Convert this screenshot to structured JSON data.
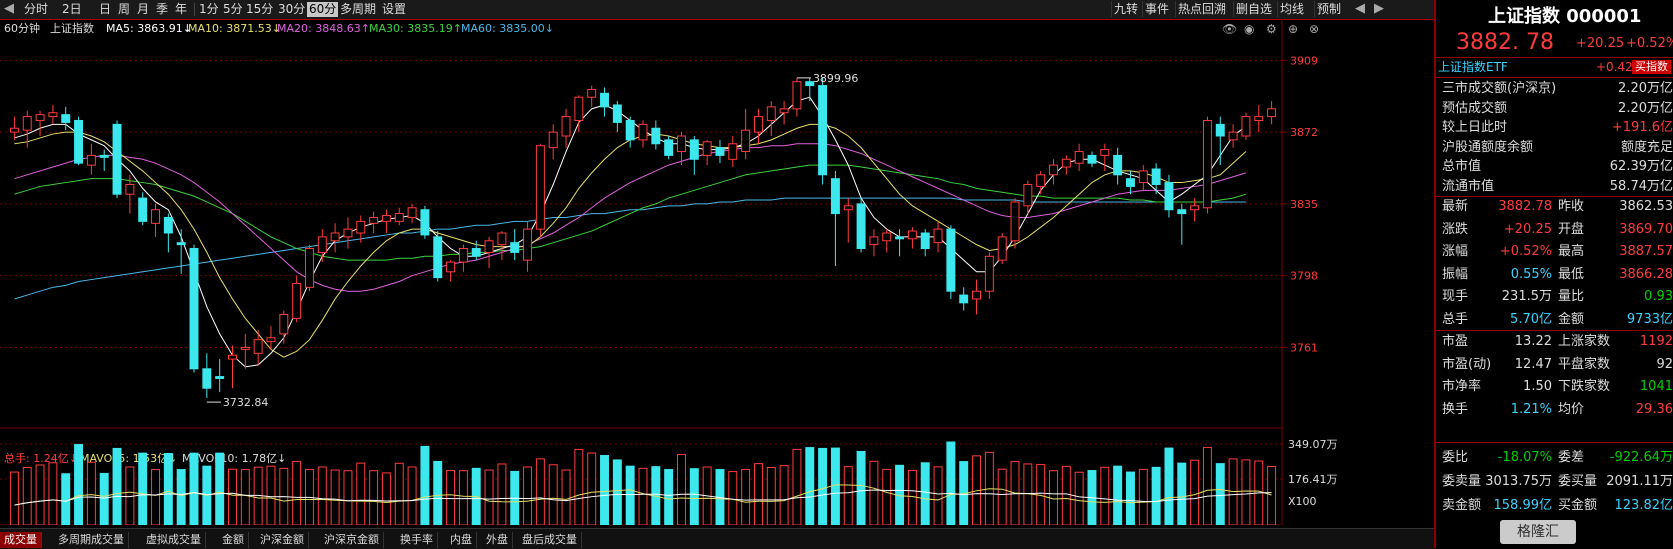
{
  "toolbar": {
    "periods": [
      "分时",
      "2日",
      "日",
      "周",
      "月",
      "季",
      "年",
      "1分",
      "5分",
      "15分",
      "30分",
      "60分",
      "多周期",
      "设置"
    ],
    "active_period": "60分",
    "right_buttons": [
      "九转",
      "事件",
      "热点回溯",
      "删自选",
      "均线",
      "预制"
    ]
  },
  "indicator": {
    "period_label": "60分钟",
    "name": "上证指数",
    "ma5": "MA5: 3863.91↓",
    "ma10": "MA10: 3871.53↓",
    "ma20": "MA20: 3848.63↑",
    "ma30": "MA30: 3835.19↑",
    "ma60": "MA60: 3835.00↓"
  },
  "volume_indicator": {
    "total": "总手: 1.24亿↓",
    "mavol5": "MAVOL5: 1.53亿↓",
    "mavol10": "MAVOL10: 1.78亿↓"
  },
  "colors": {
    "up": "#ff3c3c",
    "down": "#3ce8ee",
    "ma5": "#ffffff",
    "ma10": "#e8e06a",
    "ma20": "#e060e0",
    "ma30": "#3cd23c",
    "ma60": "#4ab8e8",
    "grid": "#7a0000"
  },
  "chart_data": {
    "type": "candlestick",
    "price_axis_ticks": [
      "3909",
      "3872",
      "3835",
      "3798",
      "3761"
    ],
    "volume_axis_ticks": [
      "349.07万",
      "176.41万",
      "X100"
    ],
    "ylim": [
      3720,
      3920
    ],
    "annotations": [
      {
        "label": "3899.96",
        "value": 3899.96
      },
      {
        "label": "3732.84",
        "value": 3732.84
      }
    ],
    "candles": [
      [
        3872,
        3874,
        3868,
        3880,
        118
      ],
      [
        3873,
        3880,
        3864,
        3883,
        145
      ],
      [
        3878,
        3881,
        3870,
        3883,
        160
      ],
      [
        3880,
        3882,
        3876,
        3886,
        173
      ],
      [
        3881,
        3877,
        3873,
        3885,
        108
      ],
      [
        3878,
        3856,
        3855,
        3880,
        281
      ],
      [
        3855,
        3860,
        3850,
        3866,
        176
      ],
      [
        3860,
        3859,
        3852,
        3863,
        110
      ],
      [
        3876,
        3840,
        3838,
        3878,
        258
      ],
      [
        3840,
        3845,
        3830,
        3850,
        148
      ],
      [
        3838,
        3826,
        3824,
        3841,
        230
      ],
      [
        3825,
        3832,
        3818,
        3835,
        133
      ],
      [
        3828,
        3820,
        3810,
        3830,
        228
      ],
      [
        3815,
        3814,
        3799,
        3822,
        133
      ],
      [
        3812,
        3750,
        3748,
        3814,
        230
      ],
      [
        3750,
        3740,
        3735,
        3758,
        153
      ],
      [
        3746,
        3745,
        3738,
        3755,
        230
      ],
      [
        3755,
        3757,
        3740,
        3762,
        135
      ],
      [
        3760,
        3761,
        3750,
        3768,
        133
      ],
      [
        3758,
        3765,
        3752,
        3770,
        147
      ],
      [
        3764,
        3766,
        3760,
        3772,
        153
      ],
      [
        3768,
        3778,
        3763,
        3780,
        140
      ],
      [
        3776,
        3794,
        3774,
        3798,
        181
      ],
      [
        3792,
        3812,
        3790,
        3814,
        133
      ],
      [
        3810,
        3818,
        3805,
        3822,
        148
      ],
      [
        3816,
        3820,
        3810,
        3825,
        130
      ],
      [
        3818,
        3822,
        3812,
        3828,
        126
      ],
      [
        3820,
        3826,
        3815,
        3829,
        171
      ],
      [
        3825,
        3828,
        3820,
        3831,
        126
      ],
      [
        3826,
        3829,
        3820,
        3832,
        113
      ],
      [
        3826,
        3830,
        3824,
        3833,
        170
      ],
      [
        3828,
        3833,
        3825,
        3835,
        148
      ],
      [
        3832,
        3819,
        3817,
        3834,
        270
      ],
      [
        3818,
        3797,
        3795,
        3821,
        181
      ],
      [
        3800,
        3805,
        3795,
        3806,
        127
      ],
      [
        3805,
        3812,
        3800,
        3814,
        126
      ],
      [
        3812,
        3808,
        3806,
        3816,
        140
      ],
      [
        3810,
        3816,
        3802,
        3818,
        130
      ],
      [
        3814,
        3820,
        3806,
        3821,
        166
      ],
      [
        3815,
        3810,
        3806,
        3822,
        122
      ],
      [
        3806,
        3822,
        3800,
        3826,
        148
      ],
      [
        3822,
        3865,
        3818,
        3866,
        196
      ],
      [
        3864,
        3872,
        3858,
        3876,
        161
      ],
      [
        3870,
        3880,
        3864,
        3884,
        130
      ],
      [
        3878,
        3890,
        3872,
        3891,
        252
      ],
      [
        3890,
        3894,
        3885,
        3896,
        231
      ],
      [
        3892,
        3885,
        3880,
        3895,
        216
      ],
      [
        3886,
        3877,
        3872,
        3888,
        190
      ],
      [
        3878,
        3868,
        3864,
        3880,
        153
      ],
      [
        3868,
        3876,
        3864,
        3878,
        140
      ],
      [
        3874,
        3866,
        3863,
        3878,
        150
      ],
      [
        3868,
        3860,
        3858,
        3870,
        133
      ],
      [
        3862,
        3870,
        3855,
        3872,
        222
      ],
      [
        3868,
        3858,
        3850,
        3870,
        138
      ],
      [
        3860,
        3867,
        3855,
        3868,
        148
      ],
      [
        3864,
        3860,
        3856,
        3868,
        133
      ],
      [
        3858,
        3866,
        3854,
        3870,
        121
      ],
      [
        3862,
        3873,
        3858,
        3884,
        133
      ],
      [
        3872,
        3880,
        3866,
        3884,
        168
      ],
      [
        3878,
        3885,
        3870,
        3888,
        145
      ],
      [
        3882,
        3884,
        3876,
        3888,
        156
      ],
      [
        3884,
        3898,
        3880,
        3900,
        252
      ],
      [
        3898,
        3896,
        3888,
        3900,
        263
      ],
      [
        3896,
        3850,
        3845,
        3900,
        258
      ],
      [
        3848,
        3830,
        3803,
        3852,
        260
      ],
      [
        3832,
        3834,
        3815,
        3838,
        150
      ],
      [
        3835,
        3812,
        3810,
        3838,
        240
      ],
      [
        3814,
        3818,
        3808,
        3822,
        182
      ],
      [
        3816,
        3820,
        3810,
        3822,
        134
      ],
      [
        3818,
        3817,
        3808,
        3822,
        158
      ],
      [
        3817,
        3821,
        3812,
        3823,
        128
      ],
      [
        3820,
        3812,
        3808,
        3822,
        173
      ],
      [
        3815,
        3822,
        3810,
        3826,
        149
      ],
      [
        3822,
        3790,
        3786,
        3824,
        296
      ],
      [
        3788,
        3784,
        3780,
        3792,
        180
      ],
      [
        3786,
        3790,
        3778,
        3796,
        214
      ],
      [
        3790,
        3808,
        3786,
        3810,
        235
      ],
      [
        3806,
        3818,
        3804,
        3820,
        135
      ],
      [
        3816,
        3836,
        3812,
        3838,
        180
      ],
      [
        3834,
        3845,
        3830,
        3847,
        166
      ],
      [
        3844,
        3850,
        3840,
        3852,
        162
      ],
      [
        3850,
        3855,
        3845,
        3858,
        126
      ],
      [
        3854,
        3858,
        3850,
        3860,
        152
      ],
      [
        3856,
        3862,
        3852,
        3866,
        117
      ],
      [
        3860,
        3856,
        3854,
        3862,
        127
      ],
      [
        3860,
        3863,
        3852,
        3866,
        146
      ],
      [
        3860,
        3850,
        3845,
        3864,
        153
      ],
      [
        3848,
        3844,
        3840,
        3852,
        118
      ],
      [
        3846,
        3852,
        3842,
        3855,
        134
      ],
      [
        3853,
        3845,
        3840,
        3856,
        146
      ],
      [
        3846,
        3832,
        3828,
        3850,
        260
      ],
      [
        3832,
        3830,
        3814,
        3835,
        171
      ],
      [
        3832,
        3834,
        3826,
        3838,
        188
      ],
      [
        3833,
        3878,
        3830,
        3880,
        264
      ],
      [
        3876,
        3870,
        3855,
        3880,
        168
      ],
      [
        3868,
        3872,
        3864,
        3876,
        196
      ],
      [
        3870,
        3880,
        3868,
        3882,
        190
      ],
      [
        3878,
        3880,
        3872,
        3886,
        183
      ],
      [
        3880,
        3884,
        3876,
        3888,
        151
      ]
    ],
    "ma5": [
      3869,
      3871,
      3874,
      3876,
      3876,
      3871,
      3868,
      3865,
      3858,
      3852,
      3843,
      3836,
      3832,
      3818,
      3800,
      3782,
      3768,
      3757,
      3751,
      3752,
      3758,
      3766,
      3780,
      3795,
      3808,
      3816,
      3820,
      3823,
      3825,
      3827,
      3828,
      3829,
      3825,
      3818,
      3812,
      3808,
      3808,
      3810,
      3812,
      3814,
      3818,
      3830,
      3845,
      3862,
      3877,
      3884,
      3886,
      3883,
      3878,
      3873,
      3869,
      3866,
      3866,
      3864,
      3863,
      3863,
      3864,
      3866,
      3870,
      3876,
      3882,
      3888,
      3890,
      3880,
      3868,
      3855,
      3838,
      3828,
      3822,
      3818,
      3818,
      3818,
      3818,
      3812,
      3806,
      3800,
      3800,
      3808,
      3818,
      3830,
      3842,
      3850,
      3856,
      3858,
      3858,
      3855,
      3852,
      3850,
      3848,
      3842,
      3836,
      3840,
      3845,
      3850,
      3860,
      3870,
      3875
    ],
    "ma10": [
      3866,
      3867,
      3869,
      3871,
      3872,
      3872,
      3870,
      3867,
      3862,
      3857,
      3852,
      3846,
      3840,
      3832,
      3822,
      3810,
      3797,
      3786,
      3776,
      3768,
      3760,
      3756,
      3759,
      3765,
      3775,
      3786,
      3795,
      3803,
      3810,
      3816,
      3820,
      3822,
      3822,
      3820,
      3818,
      3816,
      3814,
      3813,
      3813,
      3813,
      3813,
      3818,
      3825,
      3833,
      3843,
      3851,
      3858,
      3864,
      3868,
      3870,
      3871,
      3870,
      3868,
      3866,
      3865,
      3864,
      3864,
      3865,
      3866,
      3868,
      3871,
      3874,
      3876,
      3876,
      3874,
      3870,
      3864,
      3856,
      3848,
      3840,
      3834,
      3830,
      3826,
      3822,
      3818,
      3814,
      3811,
      3812,
      3814,
      3818,
      3823,
      3828,
      3834,
      3840,
      3846,
      3850,
      3852,
      3852,
      3851,
      3849,
      3846,
      3846,
      3847,
      3848,
      3850,
      3856,
      3862
    ],
    "ma20": [
      3848,
      3850,
      3852,
      3854,
      3856,
      3858,
      3859,
      3860,
      3860,
      3859,
      3858,
      3856,
      3853,
      3850,
      3846,
      3841,
      3836,
      3830,
      3824,
      3818,
      3812,
      3806,
      3800,
      3796,
      3793,
      3791,
      3790,
      3790,
      3791,
      3793,
      3795,
      3798,
      3800,
      3802,
      3804,
      3805,
      3806,
      3808,
      3810,
      3812,
      3814,
      3817,
      3820,
      3824,
      3828,
      3833,
      3838,
      3842,
      3846,
      3849,
      3852,
      3855,
      3857,
      3859,
      3861,
      3862,
      3863,
      3864,
      3864,
      3865,
      3865,
      3866,
      3866,
      3866,
      3865,
      3863,
      3861,
      3858,
      3855,
      3852,
      3849,
      3846,
      3843,
      3840,
      3837,
      3834,
      3831,
      3829,
      3828,
      3828,
      3829,
      3830,
      3832,
      3834,
      3836,
      3838,
      3840,
      3841,
      3842,
      3842,
      3842,
      3843,
      3844,
      3845,
      3847,
      3849,
      3851
    ],
    "ma30": [
      3840,
      3842,
      3844,
      3845,
      3846,
      3847,
      3848,
      3848,
      3848,
      3847,
      3846,
      3845,
      3843,
      3841,
      3839,
      3836,
      3833,
      3830,
      3826,
      3822,
      3818,
      3815,
      3812,
      3810,
      3808,
      3807,
      3806,
      3806,
      3806,
      3806,
      3807,
      3807,
      3808,
      3808,
      3809,
      3809,
      3810,
      3810,
      3811,
      3811,
      3812,
      3813,
      3815,
      3817,
      3819,
      3821,
      3824,
      3827,
      3830,
      3833,
      3835,
      3838,
      3840,
      3842,
      3844,
      3846,
      3848,
      3850,
      3851,
      3852,
      3853,
      3854,
      3855,
      3855,
      3855,
      3855,
      3854,
      3853,
      3852,
      3851,
      3850,
      3849,
      3848,
      3846,
      3845,
      3843,
      3842,
      3841,
      3840,
      3839,
      3839,
      3838,
      3838,
      3838,
      3838,
      3838,
      3838,
      3837,
      3837,
      3836,
      3836,
      3836,
      3836,
      3836,
      3837,
      3838,
      3840
    ],
    "ma60": [
      3786,
      3788,
      3790,
      3792,
      3793,
      3795,
      3796,
      3797,
      3798,
      3799,
      3800,
      3801,
      3802,
      3803,
      3804,
      3805,
      3806,
      3807,
      3808,
      3809,
      3810,
      3811,
      3812,
      3813,
      3814,
      3815,
      3816,
      3817,
      3818,
      3819,
      3820,
      3820,
      3821,
      3822,
      3822,
      3823,
      3824,
      3824,
      3825,
      3826,
      3826,
      3827,
      3828,
      3828,
      3829,
      3830,
      3830,
      3831,
      3832,
      3832,
      3833,
      3834,
      3834,
      3835,
      3835,
      3836,
      3836,
      3837,
      3837,
      3837,
      3838,
      3838,
      3838,
      3838,
      3838,
      3838,
      3838,
      3838,
      3838,
      3838,
      3838,
      3838,
      3838,
      3838,
      3837,
      3837,
      3837,
      3837,
      3837,
      3836,
      3836,
      3836,
      3836,
      3836,
      3836,
      3836,
      3836,
      3836,
      3836,
      3836,
      3836,
      3836,
      3836,
      3836,
      3836,
      3836,
      3836
    ]
  },
  "bottom_tabs": [
    "成交量",
    "多周期成交量",
    "虚拟成交量",
    "金额",
    "沪深金额",
    "沪深京金额",
    "换手率",
    "内盘",
    "外盘",
    "盘后成交量"
  ],
  "active_bottom_tab": "成交量",
  "panel": {
    "title": "上证指数 000001",
    "price": "3882. 78",
    "change": "+20.25",
    "change_pct": "+0.52%",
    "etf_label": "上证指数ETF",
    "etf_pct": "+0.42%",
    "buy_button": "买指数",
    "rows1": [
      {
        "label": "三市成交额(沪深京)",
        "value": "2.20万亿",
        "color": "wht"
      },
      {
        "label": "预估成交额",
        "value": "2.20万亿",
        "color": "wht"
      },
      {
        "label": "较上日此时",
        "value": "+191.6亿",
        "color": "red"
      },
      {
        "label": "沪股通额度余额",
        "value": "额度充足",
        "color": "wht"
      },
      {
        "label": "总市值",
        "value": "62.39万亿",
        "color": "wht"
      },
      {
        "label": "流通市值",
        "value": "58.74万亿",
        "color": "wht"
      }
    ],
    "rows2": [
      {
        "l1": "最新",
        "v1": "3882.78",
        "c1": "red",
        "l2": "昨收",
        "v2": "3862.53",
        "c2": "wht"
      },
      {
        "l1": "涨跌",
        "v1": "+20.25",
        "c1": "red",
        "l2": "开盘",
        "v2": "3869.70",
        "c2": "red"
      },
      {
        "l1": "涨幅",
        "v1": "+0.52%",
        "c1": "red",
        "l2": "最高",
        "v2": "3887.57",
        "c2": "red"
      },
      {
        "l1": "振幅",
        "v1": "0.55%",
        "c1": "cyan",
        "l2": "最低",
        "v2": "3866.28",
        "c2": "red"
      },
      {
        "l1": "现手",
        "v1": "231.5万",
        "c1": "wht",
        "l2": "量比",
        "v2": "0.93",
        "c2": "grn"
      },
      {
        "l1": "总手",
        "v1": "5.70亿",
        "c1": "cyan",
        "l2": "金额",
        "v2": "9733亿",
        "c2": "cyan"
      }
    ],
    "rows3": [
      {
        "l1": "市盈",
        "v1": "13.22",
        "c1": "wht",
        "l2": "上涨家数",
        "v2": "1192",
        "c2": "red"
      },
      {
        "l1": "市盈(动)",
        "v1": "12.47",
        "c1": "wht",
        "l2": "平盘家数",
        "v2": "92",
        "c2": "wht"
      },
      {
        "l1": "市净率",
        "v1": "1.50",
        "c1": "wht",
        "l2": "下跌家数",
        "v2": "1041",
        "c2": "grn"
      },
      {
        "l1": "换手",
        "v1": "1.21%",
        "c1": "cyan",
        "l2": "均价",
        "v2": "29.36",
        "c2": "red"
      }
    ],
    "rows4": [
      {
        "l1": "委比",
        "v1": "-18.07%",
        "c1": "grn",
        "l2": "委差",
        "v2": "-922.64万",
        "c2": "grn"
      },
      {
        "l1": "委卖量",
        "v1": "3013.75万",
        "c1": "wht",
        "l2": "委买量",
        "v2": "2091.11万",
        "c2": "wht"
      },
      {
        "l1": "卖金额",
        "v1": "158.99亿",
        "c1": "cyan",
        "l2": "买金额",
        "v2": "123.82亿",
        "c2": "cyan"
      }
    ]
  },
  "watermark": "格隆汇"
}
